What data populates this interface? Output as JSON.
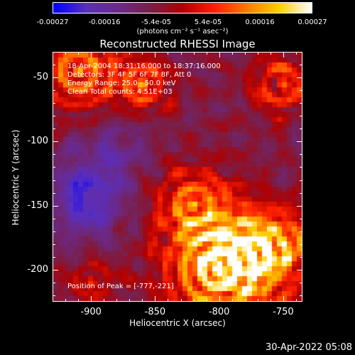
{
  "colorbar": {
    "ticks": [
      "-0.00027",
      "-0.00016",
      "-5.4e-05",
      "5.4e-05",
      "0.00016",
      "0.00027"
    ],
    "unit": "(photons cm⁻² s⁻¹ asec⁻²)",
    "stops": [
      "#0000ff",
      "#5a2fc0",
      "#6b2a8a",
      "#7a1f4a",
      "#b00000",
      "#ff2000",
      "#ff7a00",
      "#ffd000",
      "#ffffff"
    ],
    "range": [
      -0.00027,
      0.00027
    ]
  },
  "chart_data": {
    "type": "heatmap",
    "title": "Reconstructed RHESSI Image",
    "xlabel": "Heliocentric X (arcsec)",
    "ylabel": "Heliocentric Y (arcsec)",
    "xlim": [
      -930,
      -735
    ],
    "ylim": [
      -225,
      -30
    ],
    "xticks": [
      "-900",
      "-850",
      "-800",
      "-750"
    ],
    "xtick_values": [
      -900,
      -850,
      -800,
      -750
    ],
    "yticks": [
      "-50",
      "-100",
      "-150",
      "-200"
    ],
    "ytick_values": [
      -50,
      -100,
      -150,
      -200
    ],
    "info": [
      "18-Apr-2004 18:31:16.000 to 18:37:16.000",
      "Detectors: 3F 4F 5F 6F 7F 8F, Att 0",
      "Energy Range: 25.0 - 50.0 keV",
      "Clean     Total counts: 4.51E+03"
    ],
    "peak_label": "Position of Peak = [-777,-221]",
    "peak": [
      -777,
      -221
    ],
    "bright_sources": [
      {
        "x": -800,
        "y": -200,
        "strength": 1.0,
        "radius": 30
      },
      {
        "x": -775,
        "y": -190,
        "strength": 0.8,
        "radius": 25
      },
      {
        "x": -910,
        "y": -45,
        "strength": 0.8,
        "radius": 22
      },
      {
        "x": -860,
        "y": -55,
        "strength": 0.7,
        "radius": 16
      },
      {
        "x": -750,
        "y": -55,
        "strength": 0.6,
        "radius": 18
      },
      {
        "x": -820,
        "y": -150,
        "strength": 0.7,
        "radius": 22
      },
      {
        "x": -750,
        "y": -180,
        "strength": 0.55,
        "radius": 18
      },
      {
        "x": -900,
        "y": -210,
        "strength": 0.4,
        "radius": 14
      }
    ],
    "dark_sources": [
      {
        "x": -905,
        "y": -145,
        "strength": 0.9,
        "radius": 22
      },
      {
        "x": -880,
        "y": -105,
        "strength": 0.4,
        "radius": 20
      }
    ]
  },
  "timestamp": "30-Apr-2022 05:08"
}
